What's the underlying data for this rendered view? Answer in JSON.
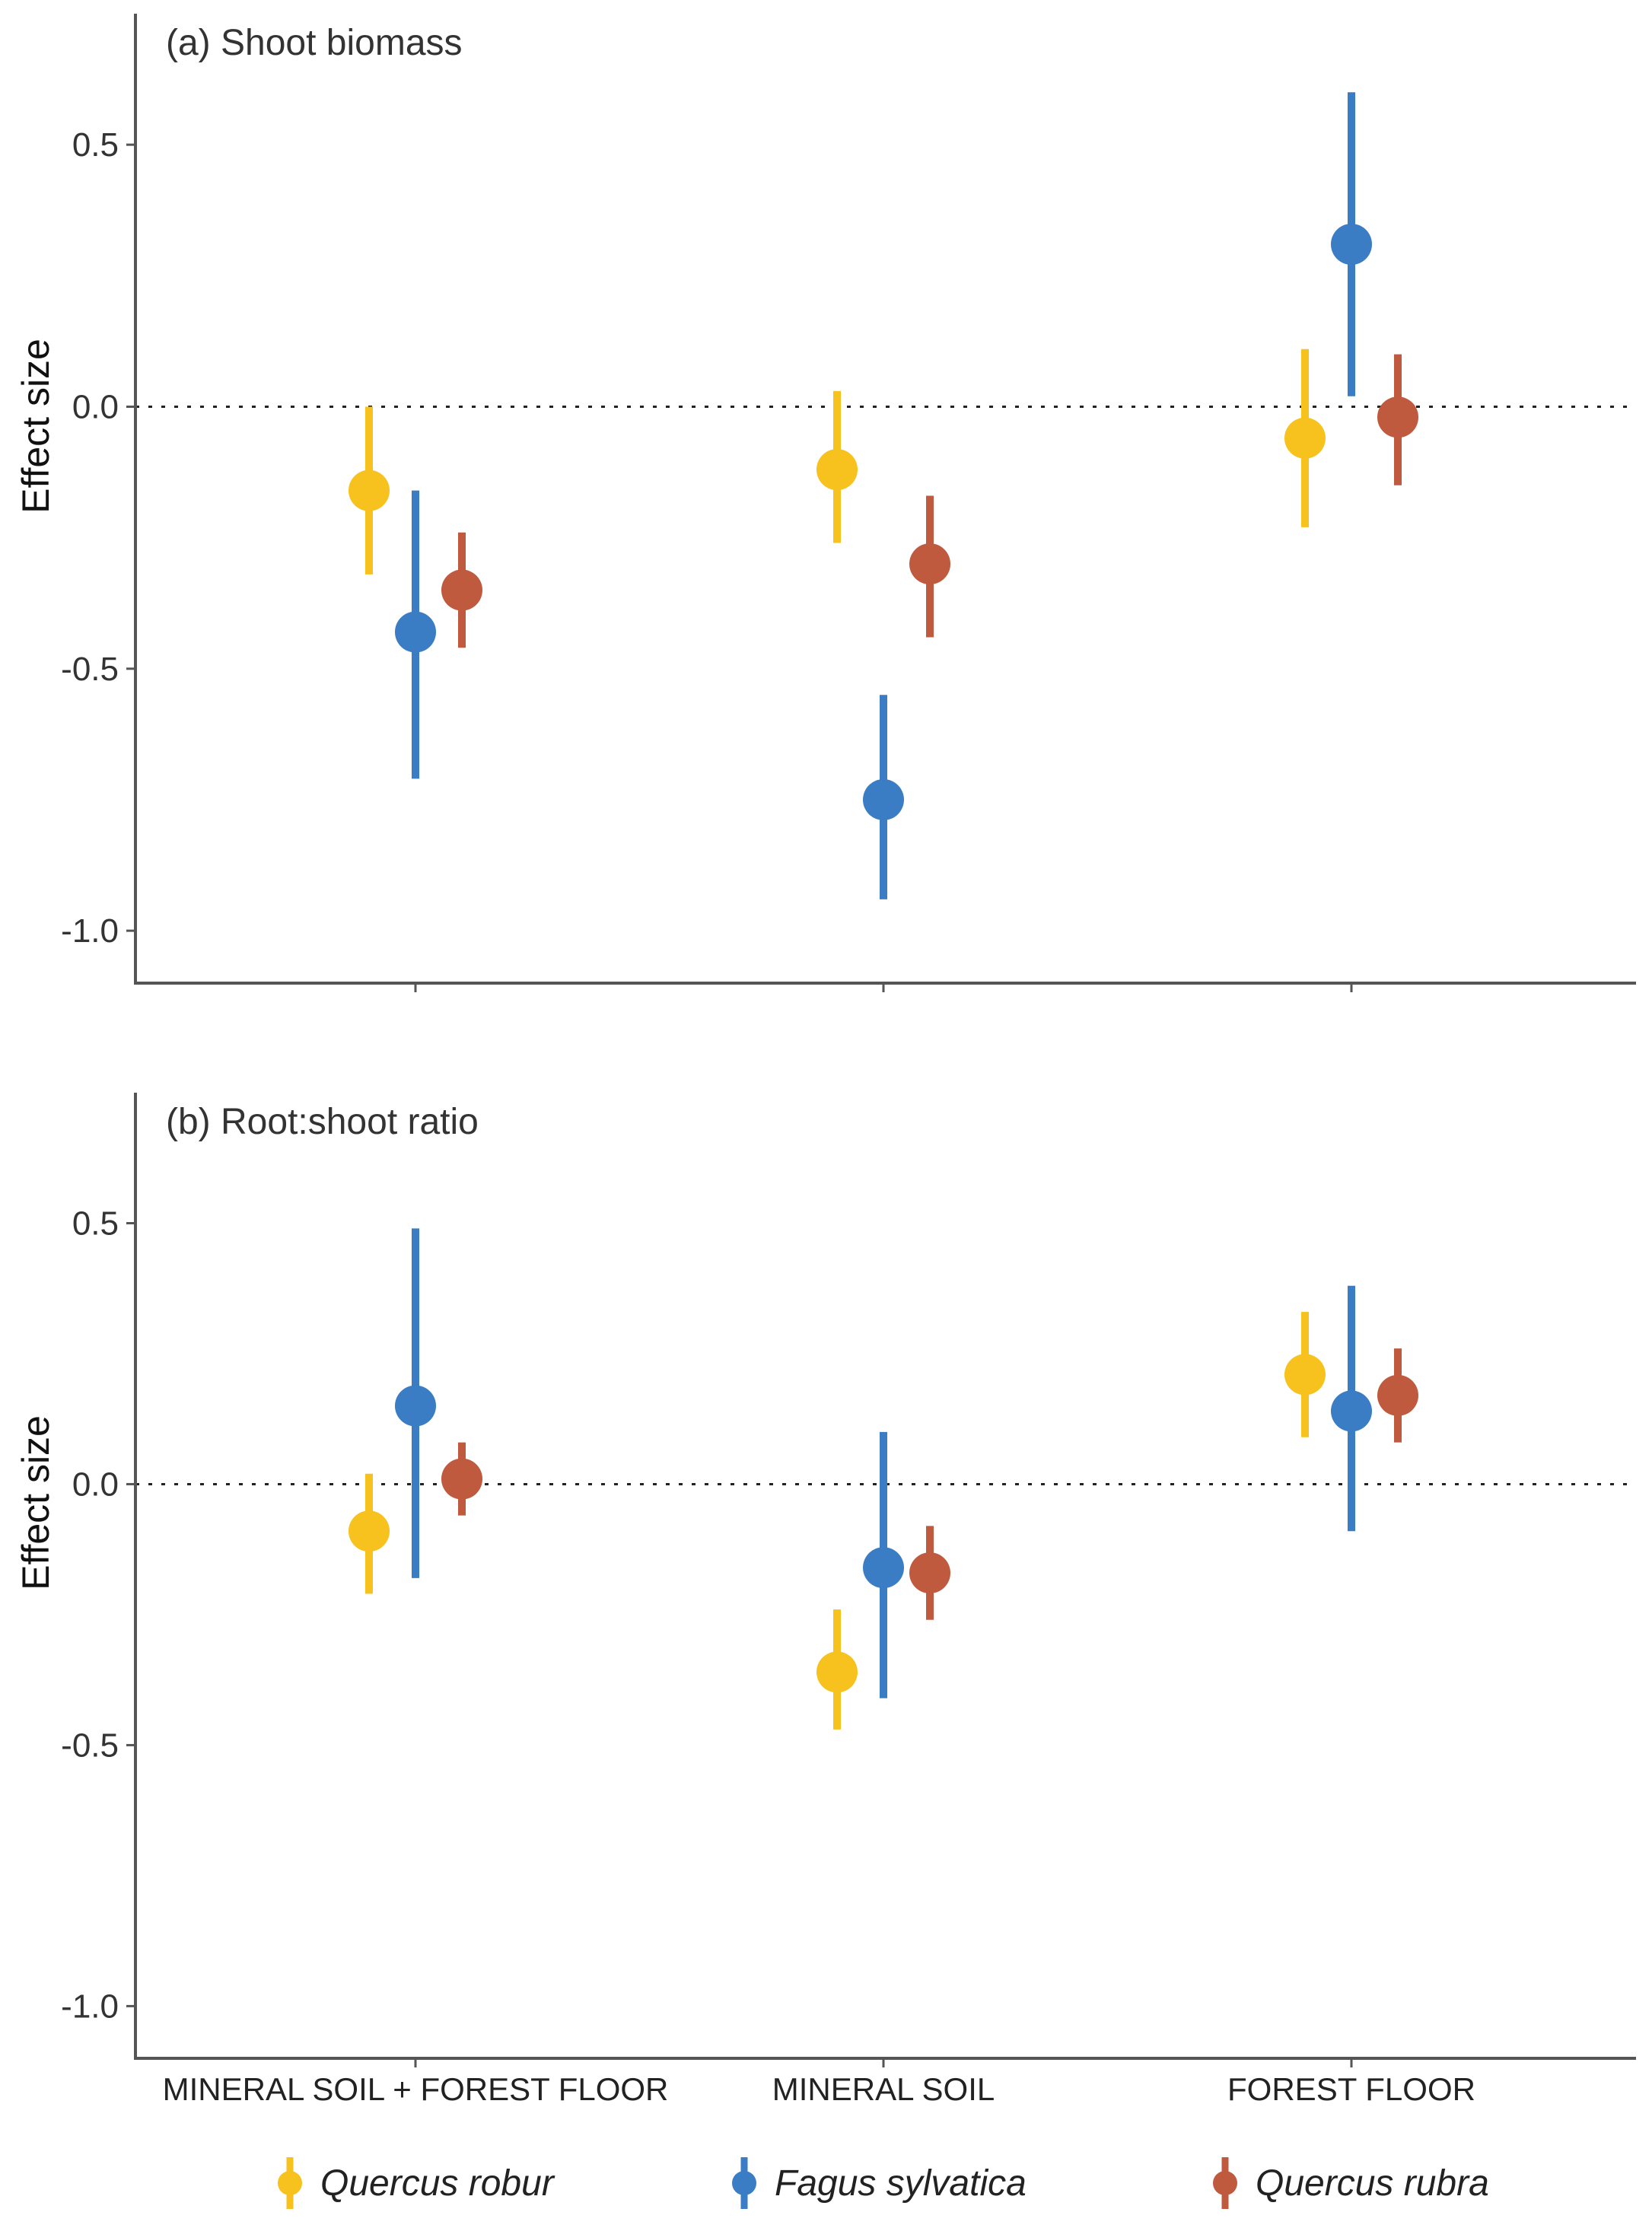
{
  "chart_data": {
    "type": "pointrange",
    "categories": [
      "MINERAL SOIL + FOREST FLOOR",
      "MINERAL SOIL",
      "FOREST FLOOR"
    ],
    "species": [
      {
        "name": "Quercus robur",
        "color": "#F7C11E"
      },
      {
        "name": "Fagus sylvatica",
        "color": "#3B7DC4"
      },
      {
        "name": "Quercus rubra",
        "color": "#C05A3E"
      }
    ],
    "ylabel": "Effect size",
    "ylim": [
      -1.1,
      0.75
    ],
    "yticks": [
      0.5,
      0.0,
      -0.5,
      -1.0
    ],
    "ytick_labels": [
      "0.5",
      "0.0",
      "-0.5",
      "-1.0"
    ],
    "reference_line": 0,
    "legend_position": "bottom",
    "panels": [
      {
        "title": "(a) Shoot biomass",
        "series": [
          {
            "name": "Quercus robur",
            "values": [
              -0.16,
              -0.12,
              -0.06
            ],
            "lower": [
              -0.32,
              -0.26,
              -0.23
            ],
            "upper": [
              0.0,
              0.03,
              0.11
            ]
          },
          {
            "name": "Fagus sylvatica",
            "values": [
              -0.43,
              -0.75,
              0.31
            ],
            "lower": [
              -0.71,
              -0.94,
              0.02
            ],
            "upper": [
              -0.16,
              -0.55,
              0.6
            ]
          },
          {
            "name": "Quercus rubra",
            "values": [
              -0.35,
              -0.3,
              -0.02
            ],
            "lower": [
              -0.46,
              -0.44,
              -0.15
            ],
            "upper": [
              -0.24,
              -0.17,
              0.1
            ]
          }
        ]
      },
      {
        "title": "(b) Root:shoot ratio",
        "series": [
          {
            "name": "Quercus robur",
            "values": [
              -0.09,
              -0.36,
              0.21
            ],
            "lower": [
              -0.21,
              -0.47,
              0.09
            ],
            "upper": [
              0.02,
              -0.24,
              0.33
            ]
          },
          {
            "name": "Fagus sylvatica",
            "values": [
              0.15,
              -0.16,
              0.14
            ],
            "lower": [
              -0.18,
              -0.41,
              -0.09
            ],
            "upper": [
              0.49,
              0.1,
              0.38
            ]
          },
          {
            "name": "Quercus rubra",
            "values": [
              0.01,
              -0.17,
              0.17
            ],
            "lower": [
              -0.06,
              -0.26,
              0.08
            ],
            "upper": [
              0.08,
              -0.08,
              0.26
            ]
          }
        ]
      }
    ]
  }
}
